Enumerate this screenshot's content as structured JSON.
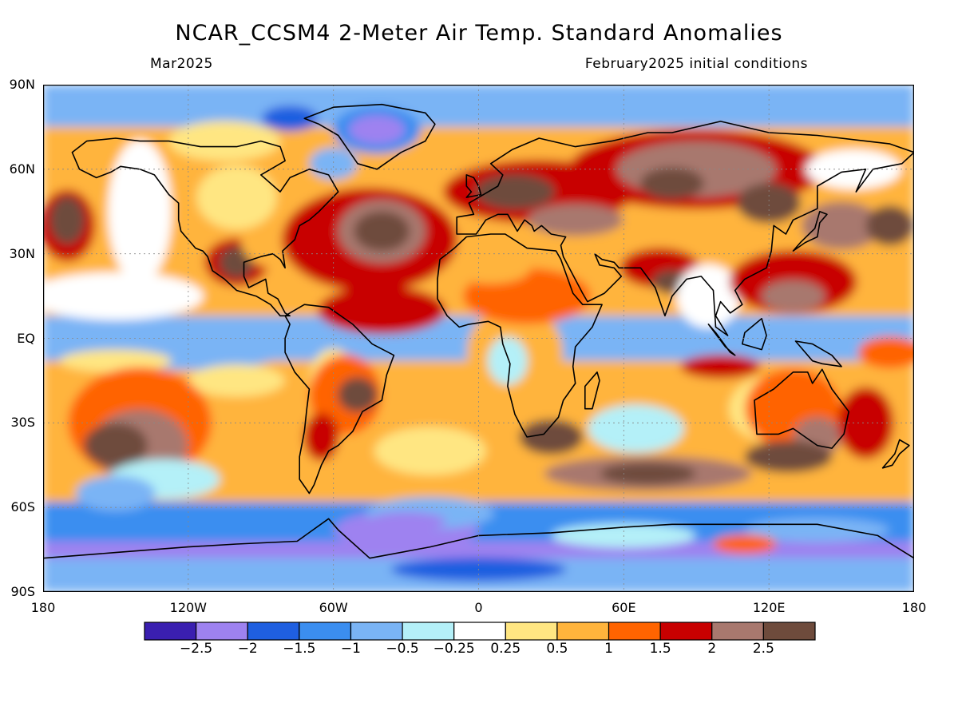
{
  "header": {
    "title": "NCAR_CCSM4 2-Meter Air Temp. Standard Anomalies",
    "valid_month": "Mar2025",
    "initial_conditions": "February2025 initial conditions"
  },
  "axes": {
    "lat_labels": [
      {
        "text": "90N",
        "lat": 90
      },
      {
        "text": "60N",
        "lat": 60
      },
      {
        "text": "30N",
        "lat": 30
      },
      {
        "text": "EQ",
        "lat": 0
      },
      {
        "text": "30S",
        "lat": -30
      },
      {
        "text": "60S",
        "lat": -60
      },
      {
        "text": "90S",
        "lat": -90
      }
    ],
    "lon_labels": [
      {
        "text": "180",
        "lon": -180
      },
      {
        "text": "120W",
        "lon": -120
      },
      {
        "text": "60W",
        "lon": -60
      },
      {
        "text": "0",
        "lon": 0
      },
      {
        "text": "60E",
        "lon": 60
      },
      {
        "text": "120E",
        "lon": 120
      },
      {
        "text": "180",
        "lon": 180
      }
    ]
  },
  "colorbar": {
    "colors": [
      "#3a1fb0",
      "#9e82f0",
      "#1f5fe0",
      "#3b8ef0",
      "#7ab4f5",
      "#b4f0f8",
      "#ffffff",
      "#ffe682",
      "#ffb43c",
      "#ff6400",
      "#c80000",
      "#a8786e",
      "#6e4b3c"
    ],
    "labels": [
      "-2.5",
      "-2",
      "-1.5",
      "-1",
      "-0.5",
      "-0.25",
      "0.25",
      "0.5",
      "1",
      "1.5",
      "2",
      "2.5"
    ]
  },
  "map_features": {
    "warm_anomaly_regions": [
      {
        "name": "north-pacific-warm",
        "lon": -170,
        "lat": 40,
        "level": 2.5
      },
      {
        "name": "mexico-warm",
        "lon": -100,
        "lat": 25,
        "level": 2.5
      },
      {
        "name": "north-atlantic-warm",
        "lon": -40,
        "lat": 38,
        "level": 2.5
      },
      {
        "name": "europe-warm",
        "lon": 20,
        "lat": 52,
        "level": 2.5
      },
      {
        "name": "siberia-warm",
        "lon": 90,
        "lat": 60,
        "level": 2.5
      },
      {
        "name": "east-asia-warm",
        "lon": 120,
        "lat": 48,
        "level": 2.5
      },
      {
        "name": "south-pacific-warm",
        "lon": -150,
        "lat": -38,
        "level": 2.5
      },
      {
        "name": "south-america-warm",
        "lon": -55,
        "lat": -20,
        "level": 2.5
      },
      {
        "name": "south-indian-warm",
        "lon": 70,
        "lat": -48,
        "level": 2.5
      },
      {
        "name": "australia-south-warm",
        "lon": 128,
        "lat": -40,
        "level": 2.5
      }
    ],
    "cold_anomaly_regions": [
      {
        "name": "greenland-cold",
        "lon": -42,
        "lat": 72,
        "level": -2.5
      },
      {
        "name": "baffin-cold",
        "lon": -78,
        "lat": 78,
        "level": -2
      },
      {
        "name": "southern-ocean-atlantic-cold",
        "lon": -30,
        "lat": -68,
        "level": -2.5
      },
      {
        "name": "antarctica-cold",
        "lon": 0,
        "lat": -82,
        "level": -2
      },
      {
        "name": "equatorial-pacific-cold",
        "lon": -110,
        "lat": 0,
        "level": -1.5
      }
    ]
  }
}
